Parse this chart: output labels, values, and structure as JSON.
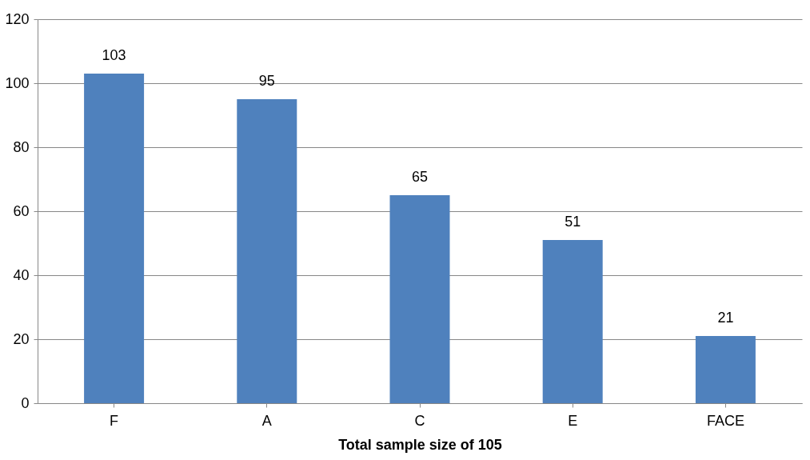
{
  "chart_data": {
    "type": "bar",
    "xlabel": "Total sample size of 105",
    "categories": [
      "F",
      "A",
      "C",
      "E",
      "FACE"
    ],
    "values": [
      103,
      95,
      65,
      51,
      21
    ],
    "color": "#4f81bd",
    "ylim": [
      0,
      120
    ],
    "yticks": [
      0,
      20,
      40,
      60,
      80,
      100,
      120
    ],
    "grid": "y",
    "data_labels": true
  }
}
